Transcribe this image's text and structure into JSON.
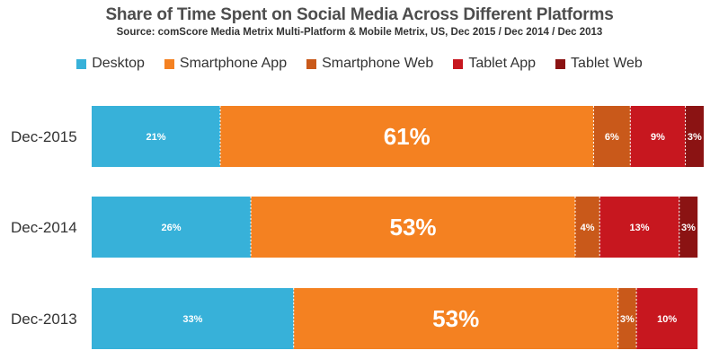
{
  "chart_data": {
    "type": "bar",
    "orientation": "horizontal-stacked-100",
    "title": "Share of Time Spent on Social Media Across Different Platforms",
    "subtitle": "Source: comScore Media Metrix Multi-Platform & Mobile Metrix, US, Dec 2015 / Dec 2014 / Dec 2013",
    "xlabel": "",
    "ylabel": "",
    "xlim": [
      0,
      100
    ],
    "categories": [
      "Dec-2015",
      "Dec-2014",
      "Dec-2013"
    ],
    "legend_position": "top",
    "series": [
      {
        "name": "Desktop",
        "color": "#37b1d9",
        "values": [
          21,
          26,
          33
        ],
        "labels": [
          "21%",
          "26%",
          "33%"
        ]
      },
      {
        "name": "Smartphone App",
        "color": "#f48121",
        "values": [
          61,
          53,
          53
        ],
        "labels": [
          "61%",
          "53%",
          "53%"
        ]
      },
      {
        "name": "Smartphone Web",
        "color": "#c9591a",
        "values": [
          6,
          4,
          3
        ],
        "labels": [
          "6%",
          "4%",
          "3%"
        ]
      },
      {
        "name": "Tablet App",
        "color": "#c7171f",
        "values": [
          9,
          13,
          10
        ],
        "labels": [
          "9%",
          "13%",
          "10%"
        ]
      },
      {
        "name": "Tablet Web",
        "color": "#8b1313",
        "values": [
          3,
          3,
          0
        ],
        "labels": [
          "3%",
          "3%",
          ""
        ]
      }
    ]
  }
}
